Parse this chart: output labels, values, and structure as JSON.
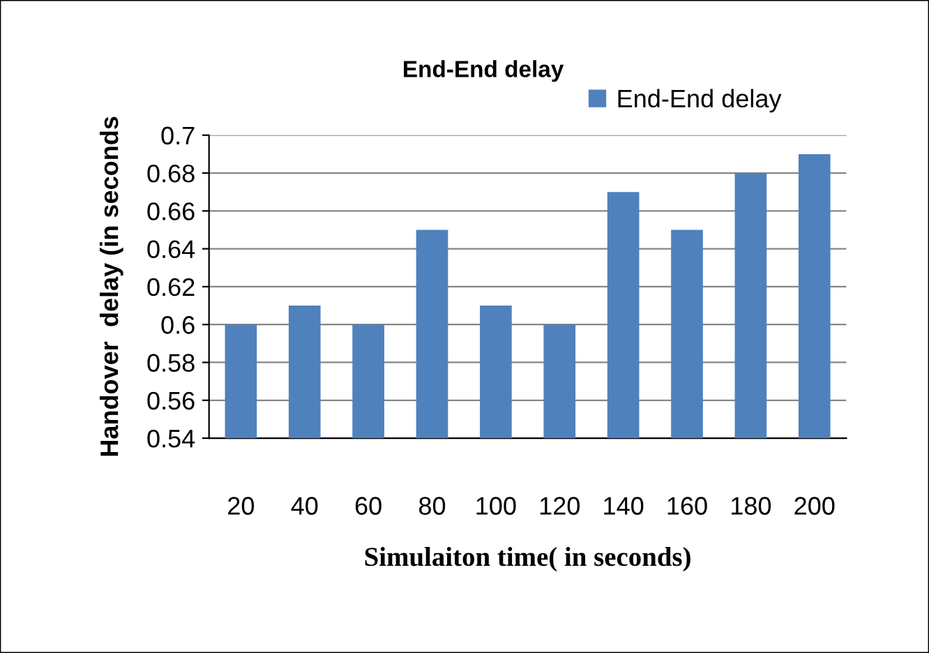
{
  "chart_data": {
    "type": "bar",
    "title": "End-End delay",
    "xlabel": "Simulaiton time( in seconds)",
    "ylabel": "Handover  delay (in seconds",
    "categories": [
      "20",
      "40",
      "60",
      "80",
      "100",
      "120",
      "140",
      "160",
      "180",
      "200"
    ],
    "series": [
      {
        "name": "End-End delay",
        "color": "#4f81bd",
        "values": [
          0.6,
          0.61,
          0.6,
          0.65,
          0.61,
          0.6,
          0.67,
          0.65,
          0.68,
          0.69
        ]
      }
    ],
    "ylim": [
      0.54,
      0.7
    ],
    "yticks": [
      0.54,
      0.56,
      0.58,
      0.6,
      0.62,
      0.64,
      0.66,
      0.68,
      0.7
    ],
    "grid": "y",
    "legend": "top right"
  }
}
